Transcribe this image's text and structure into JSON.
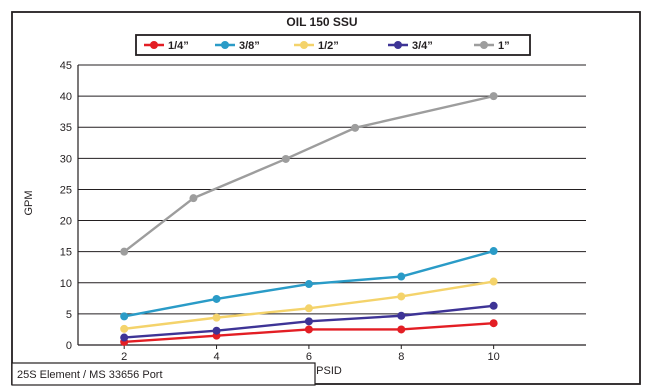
{
  "chart_data": {
    "type": "line",
    "title": "OIL 150 SSU",
    "xlabel": "PSID",
    "ylabel": "GPM",
    "x": [
      2,
      4,
      6,
      8,
      10
    ],
    "xlim": [
      1,
      12
    ],
    "ylim": [
      0,
      45
    ],
    "yticks": [
      0,
      5,
      10,
      15,
      20,
      25,
      30,
      35,
      40,
      45
    ],
    "xticks": [
      2,
      4,
      6,
      8,
      10
    ],
    "grid": "horizontal",
    "legend_position": "top-center",
    "series": [
      {
        "name": "1/4”",
        "color": "#e31e24",
        "points": [
          [
            2,
            0.5
          ],
          [
            4,
            1.5
          ],
          [
            6,
            2.5
          ],
          [
            8,
            2.5
          ],
          [
            10,
            3.5
          ]
        ]
      },
      {
        "name": "3/8”",
        "color": "#2a9bc7",
        "points": [
          [
            2,
            4.6
          ],
          [
            4,
            7.4
          ],
          [
            6,
            9.8
          ],
          [
            8,
            11.0
          ],
          [
            10,
            15.1
          ]
        ]
      },
      {
        "name": "1/2”",
        "color": "#f4d36b",
        "points": [
          [
            2,
            2.6
          ],
          [
            4,
            4.4
          ],
          [
            6,
            5.9
          ],
          [
            8,
            7.8
          ],
          [
            10,
            10.2
          ]
        ]
      },
      {
        "name": "3/4”",
        "color": "#3e3496",
        "points": [
          [
            2,
            1.2
          ],
          [
            4,
            2.3
          ],
          [
            6,
            3.8
          ],
          [
            8,
            4.7
          ],
          [
            10,
            6.3
          ]
        ]
      },
      {
        "name": "1”",
        "color": "#9d9d9d",
        "points": [
          [
            2,
            15.0
          ],
          [
            3.5,
            23.6
          ],
          [
            5.5,
            29.9
          ],
          [
            7,
            34.9
          ],
          [
            10,
            40.0
          ]
        ]
      }
    ]
  },
  "footer": {
    "caption": "25S Element / MS 33656 Port"
  }
}
